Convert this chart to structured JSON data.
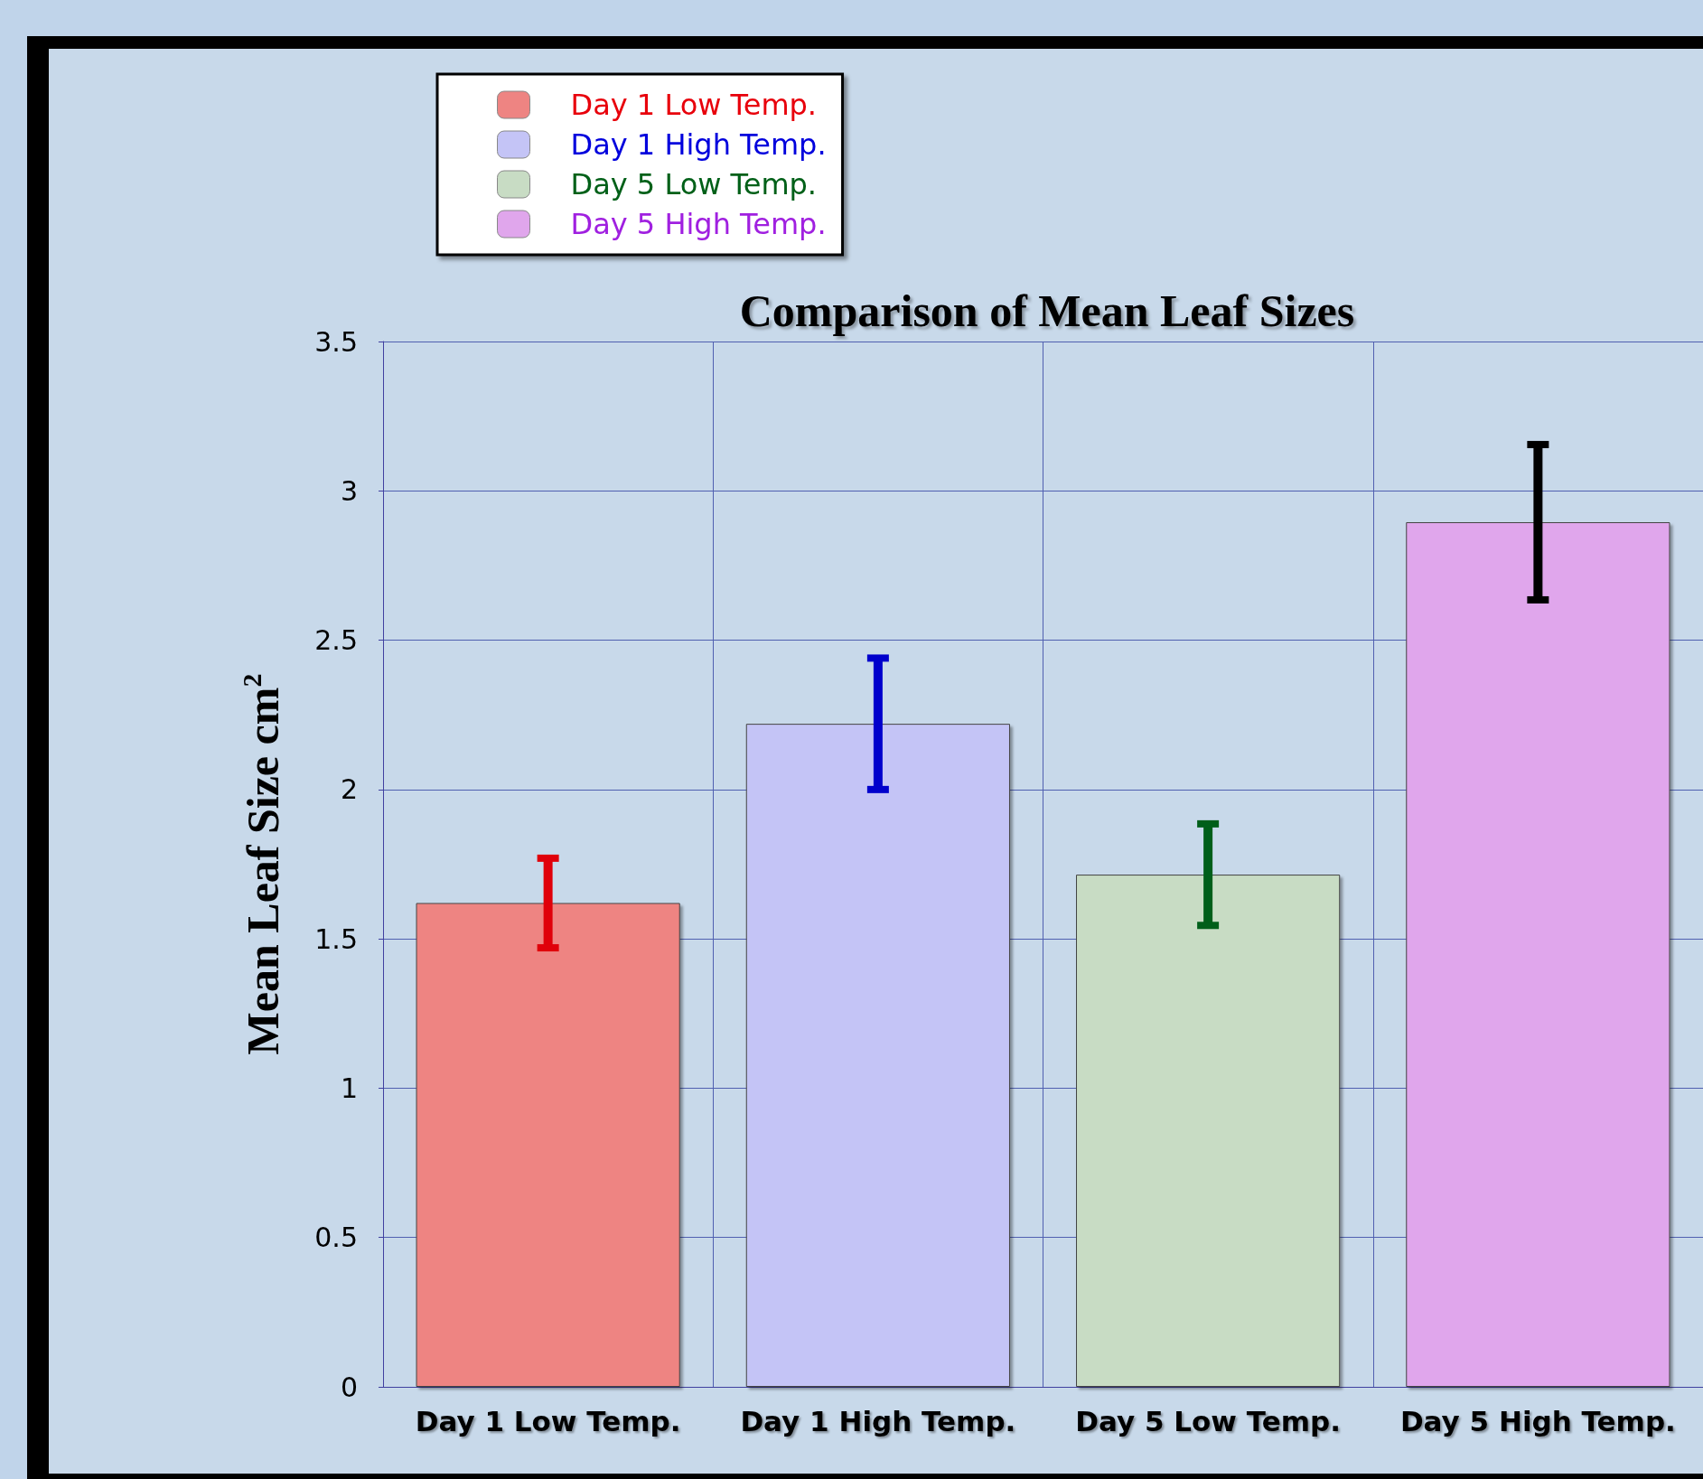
{
  "chart_data": {
    "type": "bar",
    "title": "Comparison of Mean Leaf Sizes",
    "ylabel": "Mean Leaf Size cm$^{2}$",
    "categories": [
      "Day 1 Low Temp.",
      "Day 1 High Temp.",
      "Day 5 Low Temp.",
      "Day 5 High Temp."
    ],
    "stacked": true,
    "series": [
      {
        "name": "Day 1 Low Temp.",
        "color": "#ee8482",
        "values": [
          1.62,
          null,
          null,
          null
        ],
        "errors": [
          0.15,
          null,
          null,
          null
        ]
      },
      {
        "name": "Day 1 High Temp.",
        "color": "#c4c4f6",
        "values": [
          null,
          2.22,
          null,
          null
        ],
        "errors": [
          null,
          0.22,
          null,
          null
        ]
      },
      {
        "name": "Day 5 Low Temp.",
        "color": "#c8dcc4",
        "values": [
          null,
          null,
          1.715,
          null
        ],
        "errors": [
          null,
          null,
          0.17,
          null
        ]
      },
      {
        "name": "Day 5 High Temp.",
        "color": "#e0a6ec",
        "values": [
          null,
          null,
          null,
          2.895
        ],
        "errors": [
          null,
          null,
          null,
          0.26
        ]
      }
    ],
    "ylim": [
      0,
      3.5
    ],
    "yticks": [
      0,
      0.5,
      1,
      1.5,
      2,
      2.5,
      3,
      3.5
    ],
    "grid": true,
    "legend": "top left"
  }
}
